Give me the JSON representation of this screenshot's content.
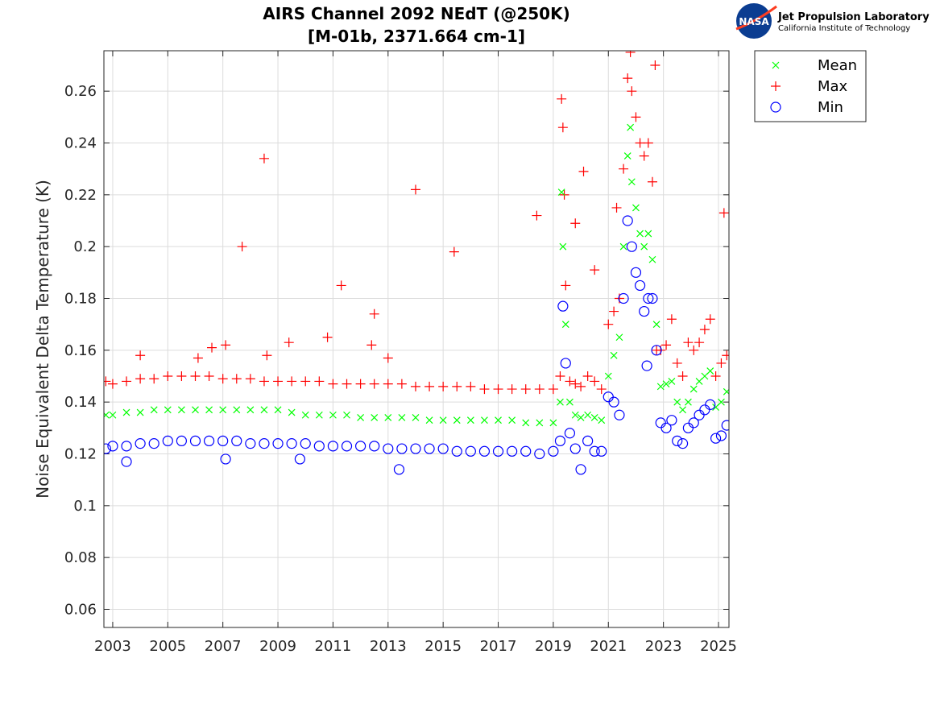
{
  "logo": {
    "org_name": "Jet Propulsion Laboratory",
    "org_subtitle": "California Institute of Technology",
    "emblem_text": "NASA"
  },
  "chart_data": {
    "type": "scatter",
    "title": [
      "AIRS Channel 2092 NEdT (@250K)",
      "[M-01b, 2371.664 cm-1]"
    ],
    "xlabel": "",
    "ylabel": "Noise Equivalent Delta Temperature (K)",
    "xlim": [
      2002.68,
      2025.38
    ],
    "ylim": [
      0.053,
      0.2756
    ],
    "xticks": [
      2003,
      2005,
      2007,
      2009,
      2011,
      2013,
      2015,
      2017,
      2019,
      2021,
      2023,
      2025
    ],
    "xtick_labels": [
      "2003",
      "2005",
      "2007",
      "2009",
      "2011",
      "2013",
      "2015",
      "2017",
      "2019",
      "2021",
      "2023",
      "2025"
    ],
    "yticks": [
      0.06,
      0.08,
      0.1,
      0.12,
      0.14,
      0.16,
      0.18,
      0.2,
      0.22,
      0.24,
      0.26
    ],
    "ytick_labels": [
      "0.06",
      "0.08",
      "0.1",
      "0.12",
      "0.14",
      "0.16",
      "0.18",
      "0.2",
      "0.22",
      "0.24",
      "0.26"
    ],
    "grid": true,
    "legend_position": "outside-top-right",
    "series": [
      {
        "name": "Mean",
        "marker": "x",
        "color": "#00ff00",
        "points": [
          [
            2002.75,
            0.135
          ],
          [
            2003,
            0.135
          ],
          [
            2003.5,
            0.136
          ],
          [
            2004,
            0.136
          ],
          [
            2004.5,
            0.137
          ],
          [
            2005,
            0.137
          ],
          [
            2005.5,
            0.137
          ],
          [
            2006,
            0.137
          ],
          [
            2006.5,
            0.137
          ],
          [
            2007,
            0.137
          ],
          [
            2007.5,
            0.137
          ],
          [
            2008,
            0.137
          ],
          [
            2008.5,
            0.137
          ],
          [
            2009,
            0.137
          ],
          [
            2009.5,
            0.136
          ],
          [
            2010,
            0.135
          ],
          [
            2010.5,
            0.135
          ],
          [
            2011,
            0.135
          ],
          [
            2011.5,
            0.135
          ],
          [
            2012,
            0.134
          ],
          [
            2012.5,
            0.134
          ],
          [
            2013,
            0.134
          ],
          [
            2013.5,
            0.134
          ],
          [
            2014,
            0.134
          ],
          [
            2014.5,
            0.133
          ],
          [
            2015,
            0.133
          ],
          [
            2015.5,
            0.133
          ],
          [
            2016,
            0.133
          ],
          [
            2016.5,
            0.133
          ],
          [
            2017,
            0.133
          ],
          [
            2017.5,
            0.133
          ],
          [
            2018,
            0.132
          ],
          [
            2018.5,
            0.132
          ],
          [
            2019,
            0.132
          ],
          [
            2019.25,
            0.14
          ],
          [
            2019.3,
            0.221
          ],
          [
            2019.35,
            0.2
          ],
          [
            2019.45,
            0.17
          ],
          [
            2019.6,
            0.14
          ],
          [
            2019.8,
            0.135
          ],
          [
            2020,
            0.134
          ],
          [
            2020.25,
            0.135
          ],
          [
            2020.5,
            0.134
          ],
          [
            2020.75,
            0.133
          ],
          [
            2021,
            0.15
          ],
          [
            2021.2,
            0.158
          ],
          [
            2021.4,
            0.165
          ],
          [
            2021.55,
            0.2
          ],
          [
            2021.7,
            0.235
          ],
          [
            2021.8,
            0.246
          ],
          [
            2021.85,
            0.225
          ],
          [
            2022,
            0.215
          ],
          [
            2022.15,
            0.205
          ],
          [
            2022.3,
            0.2
          ],
          [
            2022.45,
            0.205
          ],
          [
            2022.6,
            0.195
          ],
          [
            2022.75,
            0.17
          ],
          [
            2022.9,
            0.146
          ],
          [
            2023.1,
            0.147
          ],
          [
            2023.3,
            0.148
          ],
          [
            2023.5,
            0.14
          ],
          [
            2023.7,
            0.137
          ],
          [
            2023.9,
            0.14
          ],
          [
            2024.1,
            0.145
          ],
          [
            2024.3,
            0.148
          ],
          [
            2024.5,
            0.15
          ],
          [
            2024.7,
            0.152
          ],
          [
            2024.9,
            0.138
          ],
          [
            2025.1,
            0.14
          ],
          [
            2025.3,
            0.144
          ]
        ]
      },
      {
        "name": "Max",
        "marker": "+",
        "color": "#ff0000",
        "points": [
          [
            2002.75,
            0.148
          ],
          [
            2003,
            0.147
          ],
          [
            2003.5,
            0.148
          ],
          [
            2004,
            0.149
          ],
          [
            2004.5,
            0.149
          ],
          [
            2005,
            0.15
          ],
          [
            2005.5,
            0.15
          ],
          [
            2006,
            0.15
          ],
          [
            2006.5,
            0.15
          ],
          [
            2007,
            0.149
          ],
          [
            2007.5,
            0.149
          ],
          [
            2008,
            0.149
          ],
          [
            2008.5,
            0.148
          ],
          [
            2009,
            0.148
          ],
          [
            2009.5,
            0.148
          ],
          [
            2010,
            0.148
          ],
          [
            2010.5,
            0.148
          ],
          [
            2011,
            0.147
          ],
          [
            2011.5,
            0.147
          ],
          [
            2012,
            0.147
          ],
          [
            2012.5,
            0.147
          ],
          [
            2013,
            0.147
          ],
          [
            2013.5,
            0.147
          ],
          [
            2014,
            0.146
          ],
          [
            2014.5,
            0.146
          ],
          [
            2015,
            0.146
          ],
          [
            2015.5,
            0.146
          ],
          [
            2016,
            0.146
          ],
          [
            2016.5,
            0.145
          ],
          [
            2017,
            0.145
          ],
          [
            2017.5,
            0.145
          ],
          [
            2018,
            0.145
          ],
          [
            2018.5,
            0.145
          ],
          [
            2019,
            0.145
          ],
          [
            2004,
            0.158
          ],
          [
            2006.1,
            0.157
          ],
          [
            2006.6,
            0.161
          ],
          [
            2007.1,
            0.162
          ],
          [
            2007.7,
            0.2
          ],
          [
            2008.5,
            0.234
          ],
          [
            2008.6,
            0.158
          ],
          [
            2009.4,
            0.163
          ],
          [
            2010.8,
            0.165
          ],
          [
            2011.3,
            0.185
          ],
          [
            2012.4,
            0.162
          ],
          [
            2012.5,
            0.174
          ],
          [
            2013,
            0.157
          ],
          [
            2014,
            0.222
          ],
          [
            2015.4,
            0.198
          ],
          [
            2018.4,
            0.212
          ],
          [
            2019.25,
            0.15
          ],
          [
            2019.3,
            0.257
          ],
          [
            2019.35,
            0.246
          ],
          [
            2019.4,
            0.22
          ],
          [
            2019.45,
            0.185
          ],
          [
            2019.6,
            0.148
          ],
          [
            2019.8,
            0.209
          ],
          [
            2019.8,
            0.147
          ],
          [
            2020,
            0.146
          ],
          [
            2020.1,
            0.229
          ],
          [
            2020.25,
            0.15
          ],
          [
            2020.5,
            0.191
          ],
          [
            2020.5,
            0.148
          ],
          [
            2020.75,
            0.145
          ],
          [
            2021,
            0.17
          ],
          [
            2021.2,
            0.175
          ],
          [
            2021.3,
            0.215
          ],
          [
            2021.4,
            0.18
          ],
          [
            2021.55,
            0.23
          ],
          [
            2021.7,
            0.265
          ],
          [
            2021.8,
            0.275
          ],
          [
            2021.85,
            0.26
          ],
          [
            2022,
            0.25
          ],
          [
            2022.15,
            0.24
          ],
          [
            2022.3,
            0.235
          ],
          [
            2022.45,
            0.24
          ],
          [
            2022.6,
            0.225
          ],
          [
            2022.7,
            0.27
          ],
          [
            2022.75,
            0.16
          ],
          [
            2022.9,
            0.16
          ],
          [
            2023.1,
            0.162
          ],
          [
            2023.3,
            0.172
          ],
          [
            2023.5,
            0.155
          ],
          [
            2023.7,
            0.15
          ],
          [
            2023.9,
            0.163
          ],
          [
            2024.1,
            0.16
          ],
          [
            2024.3,
            0.163
          ],
          [
            2024.5,
            0.168
          ],
          [
            2024.7,
            0.172
          ],
          [
            2024.9,
            0.15
          ],
          [
            2025.1,
            0.155
          ],
          [
            2025.2,
            0.213
          ],
          [
            2025.3,
            0.158
          ]
        ]
      },
      {
        "name": "Min",
        "marker": "o",
        "color": "#0000ff",
        "points": [
          [
            2002.75,
            0.122
          ],
          [
            2003,
            0.123
          ],
          [
            2003.5,
            0.123
          ],
          [
            2004,
            0.124
          ],
          [
            2004.5,
            0.124
          ],
          [
            2005,
            0.125
          ],
          [
            2005.5,
            0.125
          ],
          [
            2006,
            0.125
          ],
          [
            2006.5,
            0.125
          ],
          [
            2007,
            0.125
          ],
          [
            2007.5,
            0.125
          ],
          [
            2008,
            0.124
          ],
          [
            2008.5,
            0.124
          ],
          [
            2009,
            0.124
          ],
          [
            2009.5,
            0.124
          ],
          [
            2010,
            0.124
          ],
          [
            2010.5,
            0.123
          ],
          [
            2011,
            0.123
          ],
          [
            2011.5,
            0.123
          ],
          [
            2012,
            0.123
          ],
          [
            2012.5,
            0.123
          ],
          [
            2013,
            0.122
          ],
          [
            2013.5,
            0.122
          ],
          [
            2014,
            0.122
          ],
          [
            2014.5,
            0.122
          ],
          [
            2015,
            0.122
          ],
          [
            2015.5,
            0.121
          ],
          [
            2016,
            0.121
          ],
          [
            2016.5,
            0.121
          ],
          [
            2017,
            0.121
          ],
          [
            2017.5,
            0.121
          ],
          [
            2018,
            0.121
          ],
          [
            2018.5,
            0.12
          ],
          [
            2019,
            0.121
          ],
          [
            2003.5,
            0.117
          ],
          [
            2007.1,
            0.118
          ],
          [
            2009.8,
            0.118
          ],
          [
            2013.4,
            0.114
          ],
          [
            2020,
            0.114
          ],
          [
            2019.25,
            0.125
          ],
          [
            2019.35,
            0.177
          ],
          [
            2019.45,
            0.155
          ],
          [
            2019.6,
            0.128
          ],
          [
            2019.8,
            0.122
          ],
          [
            2020.25,
            0.125
          ],
          [
            2020.5,
            0.121
          ],
          [
            2020.75,
            0.121
          ],
          [
            2021,
            0.142
          ],
          [
            2021.2,
            0.14
          ],
          [
            2021.4,
            0.135
          ],
          [
            2021.55,
            0.18
          ],
          [
            2021.7,
            0.21
          ],
          [
            2021.85,
            0.2
          ],
          [
            2022,
            0.19
          ],
          [
            2022.15,
            0.185
          ],
          [
            2022.3,
            0.175
          ],
          [
            2022.4,
            0.154
          ],
          [
            2022.45,
            0.18
          ],
          [
            2022.6,
            0.18
          ],
          [
            2022.75,
            0.16
          ],
          [
            2022.9,
            0.132
          ],
          [
            2023.1,
            0.13
          ],
          [
            2023.3,
            0.133
          ],
          [
            2023.5,
            0.125
          ],
          [
            2023.7,
            0.124
          ],
          [
            2023.9,
            0.13
          ],
          [
            2024.1,
            0.132
          ],
          [
            2024.3,
            0.135
          ],
          [
            2024.5,
            0.137
          ],
          [
            2024.7,
            0.139
          ],
          [
            2024.9,
            0.126
          ],
          [
            2025.1,
            0.127
          ],
          [
            2025.3,
            0.131
          ]
        ]
      }
    ]
  }
}
